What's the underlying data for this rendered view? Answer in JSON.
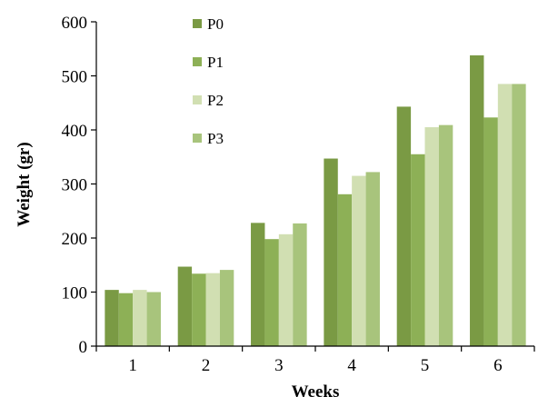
{
  "chart_data": {
    "type": "bar",
    "title": "",
    "xlabel": "Weeks",
    "ylabel": "Weight (gr)",
    "categories": [
      "1",
      "2",
      "3",
      "4",
      "5",
      "6"
    ],
    "ylim": [
      0,
      600
    ],
    "yticks": [
      0,
      100,
      200,
      300,
      400,
      500,
      600
    ],
    "grid": false,
    "legend_position": "top-left",
    "series": [
      {
        "name": "P0",
        "color": "#7a9a44",
        "values": [
          104,
          147,
          228,
          347,
          443,
          538
        ]
      },
      {
        "name": "P1",
        "color": "#8db056",
        "values": [
          98,
          134,
          198,
          281,
          355,
          423
        ]
      },
      {
        "name": "P2",
        "color": "#d1dfb2",
        "values": [
          104,
          135,
          207,
          315,
          405,
          485
        ]
      },
      {
        "name": "P3",
        "color": "#a8c47c",
        "values": [
          100,
          141,
          227,
          322,
          409,
          485
        ]
      }
    ]
  }
}
